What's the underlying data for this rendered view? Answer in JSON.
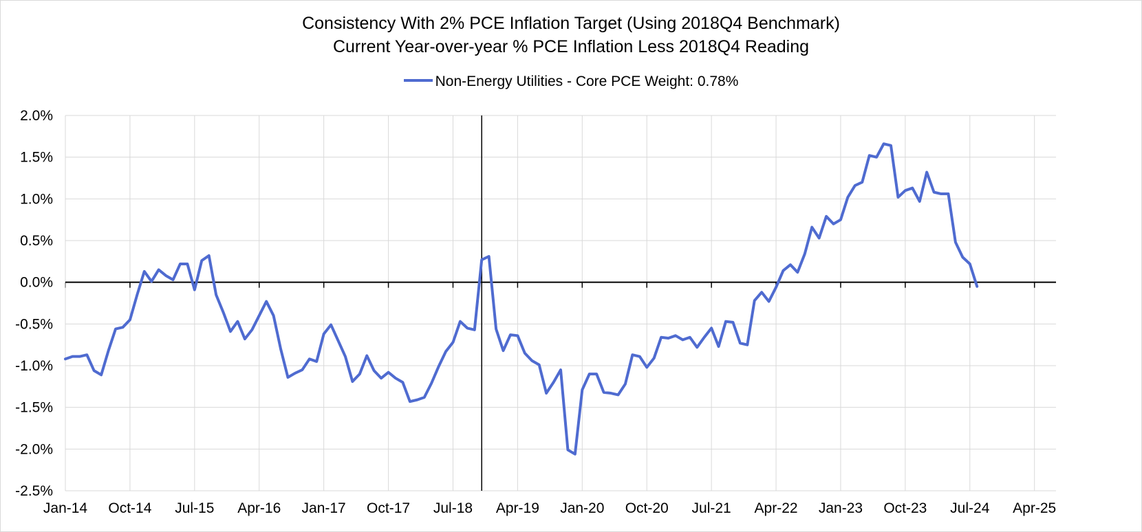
{
  "chart_data": {
    "type": "line",
    "title": "Consistency With 2% PCE Inflation Target (Using 2018Q4 Benchmark)",
    "subtitle": "Current Year-over-year % PCE Inflation Less 2018Q4 Reading",
    "legend_position": "top-center",
    "grid": true,
    "ylim": [
      -2.5,
      2.0
    ],
    "y_ticks": [
      2.0,
      1.5,
      1.0,
      0.5,
      0.0,
      -0.5,
      -1.0,
      -1.5,
      -2.0,
      -2.5
    ],
    "y_tick_labels": [
      "2.0%",
      "1.5%",
      "1.0%",
      "0.5%",
      "0.0%",
      "-0.5%",
      "-1.0%",
      "-1.5%",
      "-2.0%",
      "-2.5%"
    ],
    "x_start": "Jan-14",
    "x_months": 138,
    "x_tick_step_months": 9,
    "x_tick_labels": [
      "Jan-14",
      "Oct-14",
      "Jul-15",
      "Apr-16",
      "Jan-17",
      "Oct-17",
      "Jul-18",
      "Apr-19",
      "Jan-20",
      "Oct-20",
      "Jul-21",
      "Apr-22",
      "Jan-23",
      "Oct-23",
      "Jul-24",
      "Apr-25"
    ],
    "vertical_marker_month_index": 58,
    "series": [
      {
        "name": "Non-Energy Utilities - Core PCE Weight: 0.78%",
        "color": "#4f6bd0",
        "values": [
          -0.92,
          -0.89,
          -0.89,
          -0.87,
          -1.06,
          -1.11,
          -0.82,
          -0.56,
          -0.54,
          -0.45,
          -0.15,
          0.13,
          0.01,
          0.15,
          0.08,
          0.03,
          0.22,
          0.22,
          -0.09,
          0.26,
          0.32,
          -0.15,
          -0.36,
          -0.59,
          -0.47,
          -0.68,
          -0.57,
          -0.4,
          -0.23,
          -0.4,
          -0.8,
          -1.14,
          -1.09,
          -1.05,
          -0.92,
          -0.95,
          -0.62,
          -0.51,
          -0.7,
          -0.89,
          -1.19,
          -1.1,
          -0.88,
          -1.06,
          -1.15,
          -1.08,
          -1.15,
          -1.2,
          -1.43,
          -1.41,
          -1.38,
          -1.21,
          -1.01,
          -0.83,
          -0.72,
          -0.47,
          -0.55,
          -0.57,
          0.27,
          0.31,
          -0.56,
          -0.82,
          -0.63,
          -0.64,
          -0.85,
          -0.94,
          -0.99,
          -1.33,
          -1.2,
          -1.05,
          -2.01,
          -2.06,
          -1.29,
          -1.1,
          -1.1,
          -1.32,
          -1.33,
          -1.35,
          -1.22,
          -0.87,
          -0.89,
          -1.02,
          -0.91,
          -0.66,
          -0.67,
          -0.64,
          -0.69,
          -0.66,
          -0.78,
          -0.66,
          -0.55,
          -0.77,
          -0.47,
          -0.48,
          -0.73,
          -0.75,
          -0.22,
          -0.12,
          -0.23,
          -0.06,
          0.14,
          0.21,
          0.12,
          0.34,
          0.66,
          0.53,
          0.79,
          0.7,
          0.75,
          1.02,
          1.16,
          1.2,
          1.52,
          1.5,
          1.66,
          1.64,
          1.02,
          1.1,
          1.13,
          0.97,
          1.32,
          1.08,
          1.06,
          1.06,
          0.48,
          0.3,
          0.22,
          -0.05
        ]
      }
    ]
  }
}
